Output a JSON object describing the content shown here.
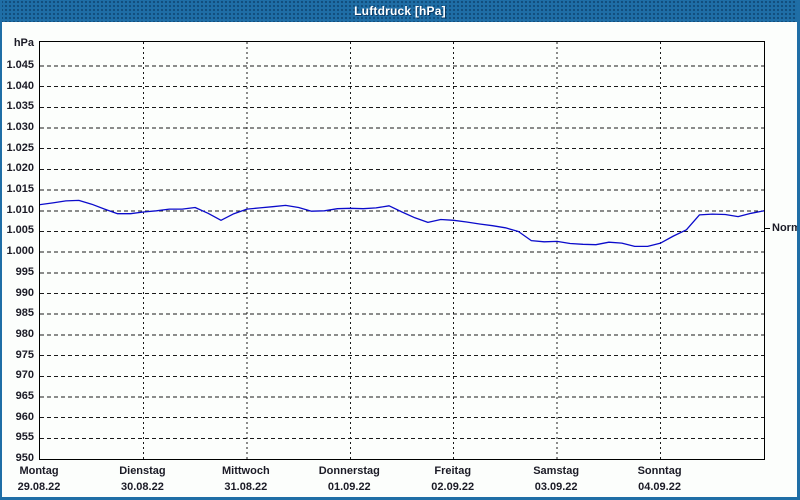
{
  "window": {
    "title": "Luftdruck [hPa]"
  },
  "colors": {
    "titlebar": "#1f6ea6",
    "frame": "#1f6ea6",
    "background": "#fcfefc",
    "grid": "#1a1a1a",
    "line": "#0b0bcb",
    "text": "#1b1b26"
  },
  "chart_data": {
    "type": "line",
    "title": "Luftdruck [hPa]",
    "ylabel": "hPa",
    "xlabel": "",
    "grid": true,
    "y_axis": {
      "min": 950,
      "max": 1051,
      "tick_step": 5
    },
    "y_ticks": [
      {
        "label": "1.045",
        "value": 1045
      },
      {
        "label": "1.040",
        "value": 1040
      },
      {
        "label": "1.035",
        "value": 1035
      },
      {
        "label": "1.030",
        "value": 1030
      },
      {
        "label": "1.025",
        "value": 1025
      },
      {
        "label": "1.020",
        "value": 1020
      },
      {
        "label": "1.015",
        "value": 1015
      },
      {
        "label": "1.010",
        "value": 1010
      },
      {
        "label": "1.005",
        "value": 1005
      },
      {
        "label": "1.000",
        "value": 1000
      },
      {
        "label": "995",
        "value": 995
      },
      {
        "label": "990",
        "value": 990
      },
      {
        "label": "985",
        "value": 985
      },
      {
        "label": "980",
        "value": 980
      },
      {
        "label": "975",
        "value": 975
      },
      {
        "label": "970",
        "value": 970
      },
      {
        "label": "965",
        "value": 965
      },
      {
        "label": "960",
        "value": 960
      },
      {
        "label": "955",
        "value": 955
      },
      {
        "label": "950",
        "value": 950
      }
    ],
    "days": [
      {
        "name": "Montag",
        "date": "29.08.22"
      },
      {
        "name": "Dienstag",
        "date": "30.08.22"
      },
      {
        "name": "Mittwoch",
        "date": "31.08.22"
      },
      {
        "name": "Donnerstag",
        "date": "01.09.22"
      },
      {
        "name": "Freitag",
        "date": "02.09.22"
      },
      {
        "name": "Samstag",
        "date": "03.09.22"
      },
      {
        "name": "Sonntag",
        "date": "04.09.22"
      }
    ],
    "sample_interval_hours": 3,
    "series": [
      {
        "name": "Luftdruck",
        "color": "#0b0bcb",
        "values": [
          1011.5,
          1011.9,
          1012.4,
          1012.5,
          1011.6,
          1010.4,
          1009.3,
          1009.3,
          1009.7,
          1010.0,
          1010.4,
          1010.4,
          1010.8,
          1009.4,
          1007.7,
          1009.3,
          1010.4,
          1010.7,
          1011.0,
          1011.3,
          1010.8,
          1009.9,
          1010.0,
          1010.5,
          1010.6,
          1010.5,
          1010.7,
          1011.2,
          1009.7,
          1008.3,
          1007.2,
          1007.9,
          1007.7,
          1007.3,
          1006.8,
          1006.4,
          1005.9,
          1005.0,
          1002.8,
          1002.5,
          1002.6,
          1002.1,
          1001.9,
          1001.8,
          1002.4,
          1002.2,
          1001.4,
          1001.4,
          1002.2,
          1003.9,
          1005.4,
          1009.0,
          1009.2,
          1009.1,
          1008.6,
          1009.4,
          1010.0
        ]
      }
    ],
    "normal": {
      "label": "Normal",
      "value": 1005.5
    }
  }
}
